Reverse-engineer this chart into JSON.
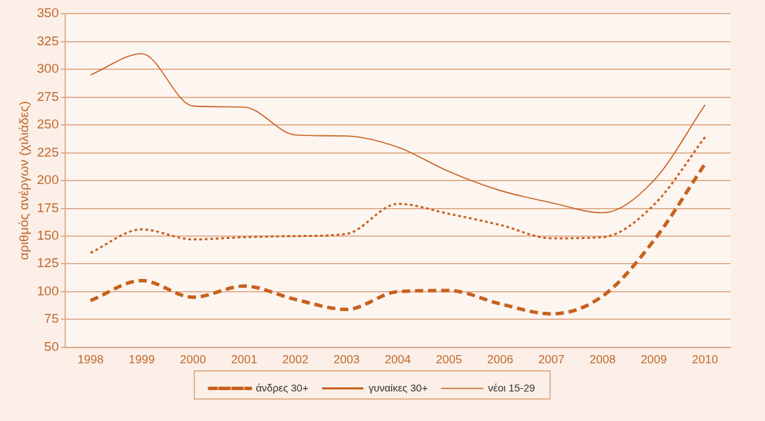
{
  "chart_data": {
    "type": "line",
    "ylabel": "αριθμός ανέργων (χιλιάδες)",
    "categories": [
      "1998",
      "1999",
      "2000",
      "2001",
      "2002",
      "2003",
      "2004",
      "2005",
      "2006",
      "2007",
      "2008",
      "2009",
      "2010"
    ],
    "series": [
      {
        "name": "άνδρες 30+",
        "color": "#c8601e",
        "line_style": "dashed",
        "values": [
          92,
          110,
          95,
          105,
          93,
          84,
          100,
          101,
          89,
          80,
          96,
          146,
          215
        ]
      },
      {
        "name": "γυναίκες 30+",
        "color": "#c8601e",
        "line_style": "dotted",
        "values": [
          135,
          156,
          147,
          149,
          150,
          152,
          179,
          170,
          160,
          148,
          149,
          178,
          239
        ]
      },
      {
        "name": "νέοι 15-29",
        "color": "#c8601e",
        "line_style": "solid",
        "values": [
          295,
          314,
          267,
          266,
          241,
          240,
          230,
          208,
          191,
          180,
          171,
          200,
          268
        ]
      }
    ],
    "ylim": [
      50,
      350
    ],
    "yticks": [
      50,
      75,
      100,
      125,
      150,
      175,
      200,
      225,
      250,
      275,
      300,
      325,
      350
    ],
    "grid": "y",
    "legend": "bottom",
    "marker": "none"
  }
}
